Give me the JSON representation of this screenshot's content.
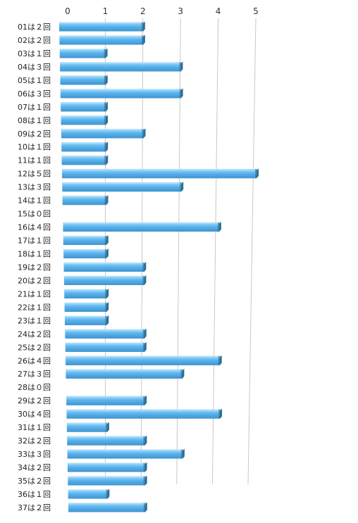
{
  "chart_data": {
    "type": "bar",
    "orientation": "horizontal",
    "style": "3d",
    "grid": true,
    "xlim": [
      0,
      5
    ],
    "xticks": [
      "0",
      "1",
      "2",
      "3",
      "4",
      "5"
    ],
    "categories": [
      "01は２回",
      "02は２回",
      "03は１回",
      "04は３回",
      "05は１回",
      "06は３回",
      "07は１回",
      "08は１回",
      "09は２回",
      "10は１回",
      "11は１回",
      "12は５回",
      "13は３回",
      "14は１回",
      "15は０回",
      "16は４回",
      "17は１回",
      "18は１回",
      "19は２回",
      "20は２回",
      "21は１回",
      "22は１回",
      "23は１回",
      "24は２回",
      "25は２回",
      "26は４回",
      "27は３回",
      "28は０回",
      "29は２回",
      "30は４回",
      "31は１回",
      "32は２回",
      "33は３回",
      "34は２回",
      "35は２回",
      "36は１回",
      "37は２回"
    ],
    "values": [
      2,
      2,
      1,
      3,
      1,
      3,
      1,
      1,
      2,
      1,
      1,
      5,
      3,
      1,
      0,
      4,
      1,
      1,
      2,
      2,
      1,
      1,
      1,
      2,
      2,
      4,
      3,
      0,
      2,
      4,
      1,
      2,
      3,
      2,
      2,
      1,
      2
    ],
    "colors": {
      "bar_face": "#5ab4ee",
      "bar_shadow": "#2c6d94",
      "bar_highlight": "#a8dcfb",
      "grid": "#c8c8c8"
    }
  }
}
